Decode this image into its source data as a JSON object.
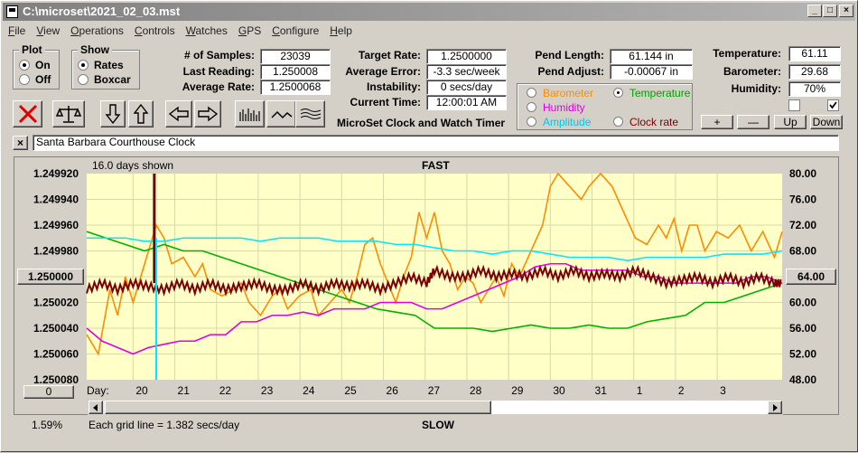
{
  "window": {
    "title": "C:\\microset\\2021_02_03.mst"
  },
  "menu": [
    "File",
    "View",
    "Operations",
    "Controls",
    "Watches",
    "GPS",
    "Configure",
    "Help"
  ],
  "plot_group": {
    "title": "Plot",
    "on": "On",
    "off": "Off"
  },
  "show_group": {
    "title": "Show",
    "rates": "Rates",
    "boxcar": "Boxcar"
  },
  "stats": {
    "samples_label": "# of Samples:",
    "samples": "23039",
    "last_reading_label": "Last Reading:",
    "last_reading": "1.250008",
    "average_rate_label": "Average Rate:",
    "average_rate": "1.2500068",
    "target_rate_label": "Target Rate:",
    "target_rate": "1.2500000",
    "average_error_label": "Average Error:",
    "average_error": "-3.3 sec/week",
    "instability_label": "Instability:",
    "instability": "0 secs/day",
    "current_time_label": "Current Time:",
    "current_time": "12:00:01 AM",
    "app_caption": "MicroSet Clock and Watch Timer",
    "pend_length_label": "Pend Length:",
    "pend_length": "61.144 in",
    "pend_adjust_label": "Pend Adjust:",
    "pend_adjust": "-0.00067 in",
    "temperature_label": "Temperature:",
    "temperature": "61.11",
    "barometer_label": "Barometer:",
    "barometer": "29.68",
    "humidity_label": "Humidity:",
    "humidity": "70%"
  },
  "overlay_options": {
    "barometer": "Barometer",
    "temperature": "Temperature",
    "humidity": "Humidity",
    "amplitude": "Amplitude",
    "clock_rate": "Clock rate"
  },
  "side_buttons": {
    "plus": "+",
    "minus": "—",
    "up": "Up",
    "down": "Down"
  },
  "clock_name": "Santa Barbara Courthouse Clock",
  "plot": {
    "days_shown": "16.0 days shown",
    "fast_label": "FAST",
    "slow_label": "SLOW",
    "left_center_button": "1.250000",
    "right_center_button": "64.00",
    "zero_button": "0",
    "day_label": "Day:",
    "grid_note": "Each grid line = 1.382 secs/day",
    "percent": "1.59%"
  },
  "colors": {
    "plot_bg": "#ffffc8",
    "rate": "#7a0000",
    "barometer": "#ff8c00",
    "temperature": "#00b000",
    "humidity": "#e000e0",
    "amplitude": "#00e8ff",
    "clock_rate": "#7a0000"
  },
  "chart_data": {
    "type": "line",
    "x_ticks": [
      "20",
      "21",
      "22",
      "23",
      "24",
      "25",
      "26",
      "27",
      "28",
      "29",
      "30",
      "31",
      "1",
      "2",
      "3"
    ],
    "y_left_ticks": [
      "1.249920",
      "1.249940",
      "1.249960",
      "1.249980",
      "1.250000",
      "1.250020",
      "1.250040",
      "1.250060",
      "1.250080"
    ],
    "y_right_ticks": [
      "80.00",
      "76.00",
      "72.00",
      "68.00",
      "64.00",
      "60.00",
      "56.00",
      "52.00",
      "48.00"
    ],
    "ylim_left": [
      1.24992,
      1.25008
    ],
    "ylim_right": [
      48,
      80
    ],
    "series": [
      {
        "color_key": "barometer",
        "x": [
          0,
          0.3,
          0.6,
          0.8,
          1.0,
          1.2,
          1.5,
          1.8,
          2.0,
          2.2,
          2.5,
          2.8,
          3.0,
          3.2,
          3.5,
          3.8,
          4.0,
          4.2,
          4.5,
          4.8,
          5.0,
          5.2,
          5.5,
          5.8,
          6.0,
          6.3,
          6.6,
          6.8,
          7.0,
          7.2,
          7.4,
          7.6,
          7.8,
          8.0,
          8.2,
          8.4,
          8.6,
          8.8,
          9.0,
          9.2,
          9.4,
          9.6,
          9.8,
          10.0,
          10.2,
          10.4,
          10.6,
          10.8,
          11.0,
          11.2,
          11.5,
          11.8,
          12.0,
          12.2,
          12.5,
          12.8,
          13.0,
          13.3,
          13.6,
          13.9,
          14.2,
          14.5,
          14.8,
          15.0,
          15.2,
          15.4,
          15.6,
          15.8,
          16.0,
          16.3,
          16.6,
          16.9,
          17.2,
          17.5,
          17.8,
          18.0
        ],
        "y": [
          55,
          52,
          62,
          58,
          64,
          60,
          66,
          72,
          70,
          66,
          67,
          64,
          66,
          62,
          61,
          62,
          63,
          60,
          58,
          61,
          62,
          59,
          61,
          62,
          58,
          60,
          62,
          60,
          64,
          69,
          70,
          66,
          63,
          60,
          64,
          67,
          74,
          70,
          74,
          68,
          66,
          62,
          64,
          63,
          60,
          62,
          64,
          61,
          66,
          64,
          68,
          72,
          78,
          80,
          78,
          76,
          78,
          80,
          78,
          74,
          70,
          69,
          72,
          70,
          73,
          68,
          72,
          72,
          68,
          71,
          70,
          72,
          68,
          71,
          67,
          71
        ]
      },
      {
        "color_key": "temperature",
        "x": [
          0,
          0.5,
          1.0,
          1.5,
          2.0,
          2.5,
          3.0,
          3.5,
          4.0,
          4.5,
          5.0,
          5.5,
          6.0,
          6.5,
          7.0,
          7.5,
          8.0,
          8.5,
          9.0,
          9.5,
          10.0,
          10.5,
          11.0,
          11.5,
          12.0,
          12.5,
          13.0,
          13.5,
          14.0,
          14.5,
          15.0,
          15.5,
          16.0,
          16.5,
          17.0,
          17.5,
          18.0
        ],
        "y": [
          71,
          70,
          69,
          68,
          69,
          68,
          68,
          67,
          66,
          65,
          64,
          63,
          62,
          61,
          60,
          59,
          58.5,
          58,
          56,
          56,
          56,
          55.5,
          56,
          56.5,
          56,
          56,
          56.5,
          56,
          56,
          57,
          57.5,
          58,
          60,
          60,
          61,
          62,
          63
        ]
      },
      {
        "color_key": "humidity",
        "x": [
          0,
          0.4,
          0.8,
          1.2,
          1.6,
          2.0,
          2.4,
          2.8,
          3.2,
          3.6,
          4.0,
          4.4,
          4.8,
          5.2,
          5.6,
          6.0,
          6.4,
          6.8,
          7.2,
          7.6,
          8.0,
          8.4,
          8.8,
          9.2,
          9.6,
          10.0,
          10.4,
          10.8,
          11.2,
          11.6,
          12.0,
          12.4,
          12.8,
          13.2,
          13.6,
          14.0,
          14.4,
          14.8,
          15.2,
          15.6,
          16.0,
          16.4,
          16.8,
          17.2,
          17.6,
          18.0
        ],
        "y": [
          56,
          54,
          53,
          52,
          53,
          53.5,
          54,
          54,
          55,
          55,
          57,
          57,
          58,
          58,
          58.5,
          58,
          59,
          59,
          59,
          60,
          60,
          60,
          59,
          59,
          60,
          61,
          62,
          63,
          64,
          65.5,
          66,
          66,
          65,
          65,
          65,
          65,
          64,
          64,
          63,
          63,
          63,
          63,
          63,
          64,
          64,
          63
        ]
      },
      {
        "color_key": "amplitude",
        "x": [
          0,
          0.5,
          1.0,
          1.5,
          2.0,
          2.5,
          3.0,
          3.5,
          4.0,
          4.5,
          5.0,
          5.5,
          6.0,
          6.5,
          7.0,
          7.5,
          8.0,
          8.5,
          9.0,
          9.5,
          10.0,
          10.5,
          11.0,
          11.5,
          12.0,
          12.5,
          13.0,
          13.5,
          14.0,
          14.5,
          15.0,
          15.5,
          16.0,
          16.5,
          17.0,
          17.5,
          18.0
        ],
        "y": [
          70,
          70,
          70,
          69.5,
          69.5,
          70,
          70,
          70,
          70,
          69.5,
          70,
          70,
          70,
          69.5,
          69.5,
          69.5,
          69,
          69,
          68.5,
          68,
          68,
          67.5,
          68,
          68,
          67.5,
          67,
          67,
          67,
          66.5,
          67,
          67,
          67,
          67,
          67.5,
          67.5,
          67.5,
          68
        ]
      },
      {
        "color_key": "clock_rate",
        "x": [
          0,
          0.4,
          0.8,
          1.2,
          1.6,
          2.0,
          2.4,
          2.8,
          3.2,
          3.6,
          4.0,
          4.4,
          4.8,
          5.2,
          5.6,
          6.0,
          6.4,
          6.8,
          7.2,
          7.6,
          8.0,
          8.4,
          8.8,
          9.0,
          9.4,
          9.8,
          10.2,
          10.6,
          11.0,
          11.4,
          11.8,
          12.2,
          12.6,
          13.0,
          13.4,
          13.8,
          14.2,
          14.6,
          15.0,
          15.4,
          15.8,
          16.2,
          16.6,
          17.0,
          17.4,
          17.8,
          18.0
        ],
        "y": [
          62,
          63,
          62,
          63,
          62.5,
          62,
          63,
          62,
          63,
          62,
          62.5,
          63,
          62,
          62,
          63,
          62,
          63,
          62.5,
          63,
          62,
          63,
          64,
          63,
          65,
          64,
          64,
          65,
          64,
          64.5,
          64,
          65,
          64,
          65,
          64,
          64.5,
          64,
          65,
          64,
          63,
          63.5,
          64,
          63,
          64,
          63,
          64,
          63,
          63
        ]
      }
    ]
  }
}
